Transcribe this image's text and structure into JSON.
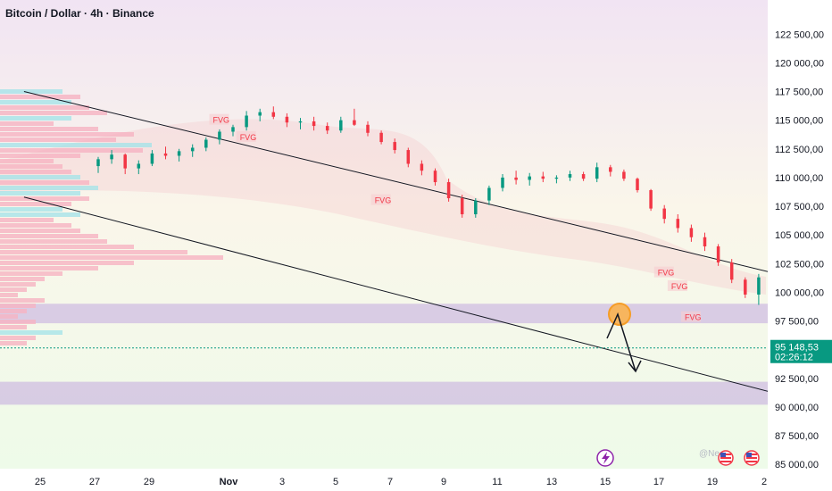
{
  "header": {
    "title": "Bitcoin / Dollar · 4h · Binance"
  },
  "watermark": "@Ne",
  "price_badge": {
    "price": "95 148,53",
    "countdown": "02:26:12",
    "color": "#089981"
  },
  "colors": {
    "up": "#089981",
    "down": "#f23645",
    "fvg_text": "#f23645",
    "zone": "#c9b4e0",
    "orange": "#f59d27",
    "bolt": "#8e24aa"
  },
  "icons": [
    "lightning-icon",
    "us-flag-icon",
    "us-flag-icon"
  ],
  "chart_data": {
    "type": "candlestick",
    "title": "Bitcoin / Dollar · 4h · Binance",
    "ylim": [
      84000,
      124000
    ],
    "y_ticks": [
      "122 500,00",
      "120 000,00",
      "117 500,00",
      "115 000,00",
      "112 500,00",
      "110 000,00",
      "107 500,00",
      "105 000,00",
      "102 500,00",
      "100 000,00",
      "97 500,00",
      "92 500,00",
      "90 000,00",
      "87 500,00",
      "85 000,00"
    ],
    "x_ticks": [
      "25",
      "27",
      "29",
      "Nov",
      "3",
      "5",
      "7",
      "9",
      "11",
      "13",
      "15",
      "17",
      "19",
      "2"
    ],
    "last_price": 95148.53,
    "fvg_labels": [
      {
        "text": "FVG",
        "price": 115000,
        "date_index": 15
      },
      {
        "text": "FVG",
        "price": 113500,
        "date_index": 17
      },
      {
        "text": "FVG",
        "price": 108000,
        "date_index": 27
      },
      {
        "text": "FVG",
        "price": 101700,
        "date_index": 48
      },
      {
        "text": "FVG",
        "price": 100500,
        "date_index": 49
      },
      {
        "text": "FVG",
        "price": 97800,
        "date_index": 50
      }
    ],
    "zones": [
      {
        "from": 97300,
        "to": 99000
      },
      {
        "from": 90200,
        "to": 92200
      }
    ],
    "channel": [
      {
        "from": [
          -1,
          117500
        ],
        "to": [
          57,
          101000
        ]
      },
      {
        "from": [
          -1,
          108300
        ],
        "to": [
          57,
          90500
        ]
      }
    ],
    "candles": [
      [
        111000,
        111800,
        110400,
        111600
      ],
      [
        111600,
        112400,
        111200,
        112000
      ],
      [
        112000,
        112100,
        110300,
        110800
      ],
      [
        110800,
        111500,
        110300,
        111200
      ],
      [
        111200,
        112400,
        111000,
        112100
      ],
      [
        112100,
        112700,
        111600,
        111900
      ],
      [
        111900,
        112500,
        111400,
        112300
      ],
      [
        112300,
        112900,
        111800,
        112600
      ],
      [
        112600,
        113500,
        112300,
        113300
      ],
      [
        113300,
        114200,
        112900,
        114000
      ],
      [
        114000,
        114600,
        113600,
        114400
      ],
      [
        114400,
        115800,
        114100,
        115400
      ],
      [
        115400,
        116000,
        114900,
        115700
      ],
      [
        115700,
        116200,
        115100,
        115300
      ],
      [
        115300,
        115600,
        114400,
        114800
      ],
      [
        114800,
        115200,
        114200,
        114900
      ],
      [
        114900,
        115300,
        114100,
        114500
      ],
      [
        114500,
        114800,
        113800,
        114100
      ],
      [
        114100,
        115300,
        113900,
        115000
      ],
      [
        115000,
        116000,
        114500,
        114600
      ],
      [
        114600,
        114900,
        113600,
        113900
      ],
      [
        113900,
        114100,
        112900,
        113100
      ],
      [
        113100,
        113400,
        112100,
        112400
      ],
      [
        112400,
        112600,
        110900,
        111200
      ],
      [
        111200,
        111500,
        110200,
        110600
      ],
      [
        110600,
        110800,
        109300,
        109600
      ],
      [
        109600,
        109900,
        107900,
        108200
      ],
      [
        108200,
        108500,
        106500,
        106800
      ],
      [
        106800,
        108200,
        106500,
        108000
      ],
      [
        108000,
        109300,
        107600,
        109100
      ],
      [
        109100,
        110300,
        108800,
        110000
      ],
      [
        110000,
        110600,
        109400,
        109800
      ],
      [
        109800,
        110400,
        109300,
        110100
      ],
      [
        110100,
        110500,
        109600,
        109900
      ],
      [
        109900,
        110200,
        109500,
        110000
      ],
      [
        110000,
        110600,
        109700,
        110300
      ],
      [
        110300,
        110500,
        109700,
        109900
      ],
      [
        109900,
        111300,
        109600,
        110900
      ],
      [
        110900,
        111100,
        110100,
        110500
      ],
      [
        110500,
        110700,
        109700,
        109900
      ],
      [
        109900,
        110000,
        108700,
        108900
      ],
      [
        108900,
        109000,
        107100,
        107300
      ],
      [
        107300,
        107600,
        106000,
        106400
      ],
      [
        106400,
        106800,
        105200,
        105600
      ],
      [
        105600,
        105900,
        104400,
        104800
      ],
      [
        104800,
        105200,
        103600,
        104000
      ],
      [
        104000,
        104200,
        102300,
        102600
      ],
      [
        102600,
        102900,
        100800,
        101100
      ],
      [
        101100,
        101300,
        99500,
        99800
      ],
      [
        99800,
        101600,
        98900,
        101300
      ],
      [
        101300,
        102700,
        100900,
        102400
      ]
    ]
  }
}
